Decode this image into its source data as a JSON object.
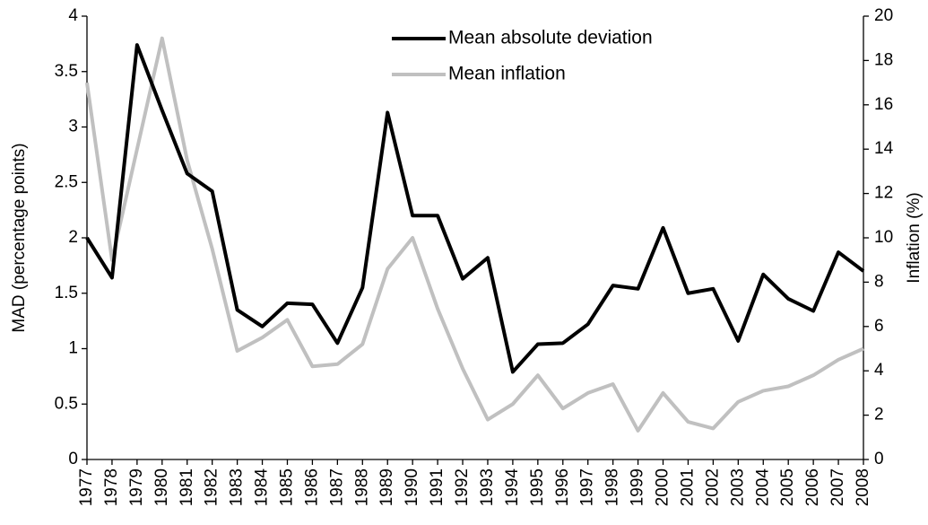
{
  "chart_data": {
    "type": "line",
    "y_label": "MAD (percentage points)",
    "y2_label": "Inflation (%)",
    "categories": [
      "1977",
      "1978",
      "1979",
      "1980",
      "1981",
      "1982",
      "1983",
      "1984",
      "1985",
      "1986",
      "1987",
      "1988",
      "1989",
      "1990",
      "1991",
      "1992",
      "1993",
      "1994",
      "1995",
      "1996",
      "1997",
      "1998",
      "1999",
      "2000",
      "2001",
      "2002",
      "2003",
      "2004",
      "2005",
      "2006",
      "2007",
      "2008"
    ],
    "series": [
      {
        "name": "Mean absolute deviation",
        "color": "#000000",
        "axis": "y",
        "values": [
          2.0,
          1.64,
          3.74,
          3.15,
          2.58,
          2.42,
          1.35,
          1.2,
          1.41,
          1.4,
          1.05,
          1.55,
          3.13,
          2.2,
          2.2,
          1.63,
          1.82,
          0.79,
          1.04,
          1.05,
          1.22,
          1.57,
          1.54,
          2.09,
          1.5,
          1.54,
          1.07,
          1.67,
          1.45,
          1.34,
          1.87,
          1.7
        ]
      },
      {
        "name": "Mean inflation",
        "color": "#c0c0c0",
        "axis": "y2",
        "values": [
          17,
          9,
          14,
          19,
          13.5,
          9.5,
          4.9,
          5.5,
          6.3,
          4.2,
          4.3,
          5.2,
          8.6,
          10,
          6.8,
          4.1,
          1.8,
          2.5,
          3.8,
          2.3,
          3,
          3.4,
          1.3,
          3,
          1.7,
          1.4,
          2.6,
          3.1,
          3.3,
          3.8,
          4.5,
          5
        ]
      }
    ],
    "ylim": [
      0,
      4
    ],
    "yticks": [
      0,
      0.5,
      1,
      1.5,
      2,
      2.5,
      3,
      3.5,
      4
    ],
    "y2lim": [
      0,
      20
    ],
    "y2ticks": [
      0,
      2,
      4,
      6,
      8,
      10,
      12,
      14,
      16,
      18,
      20
    ],
    "legend": "top",
    "grid": false
  }
}
